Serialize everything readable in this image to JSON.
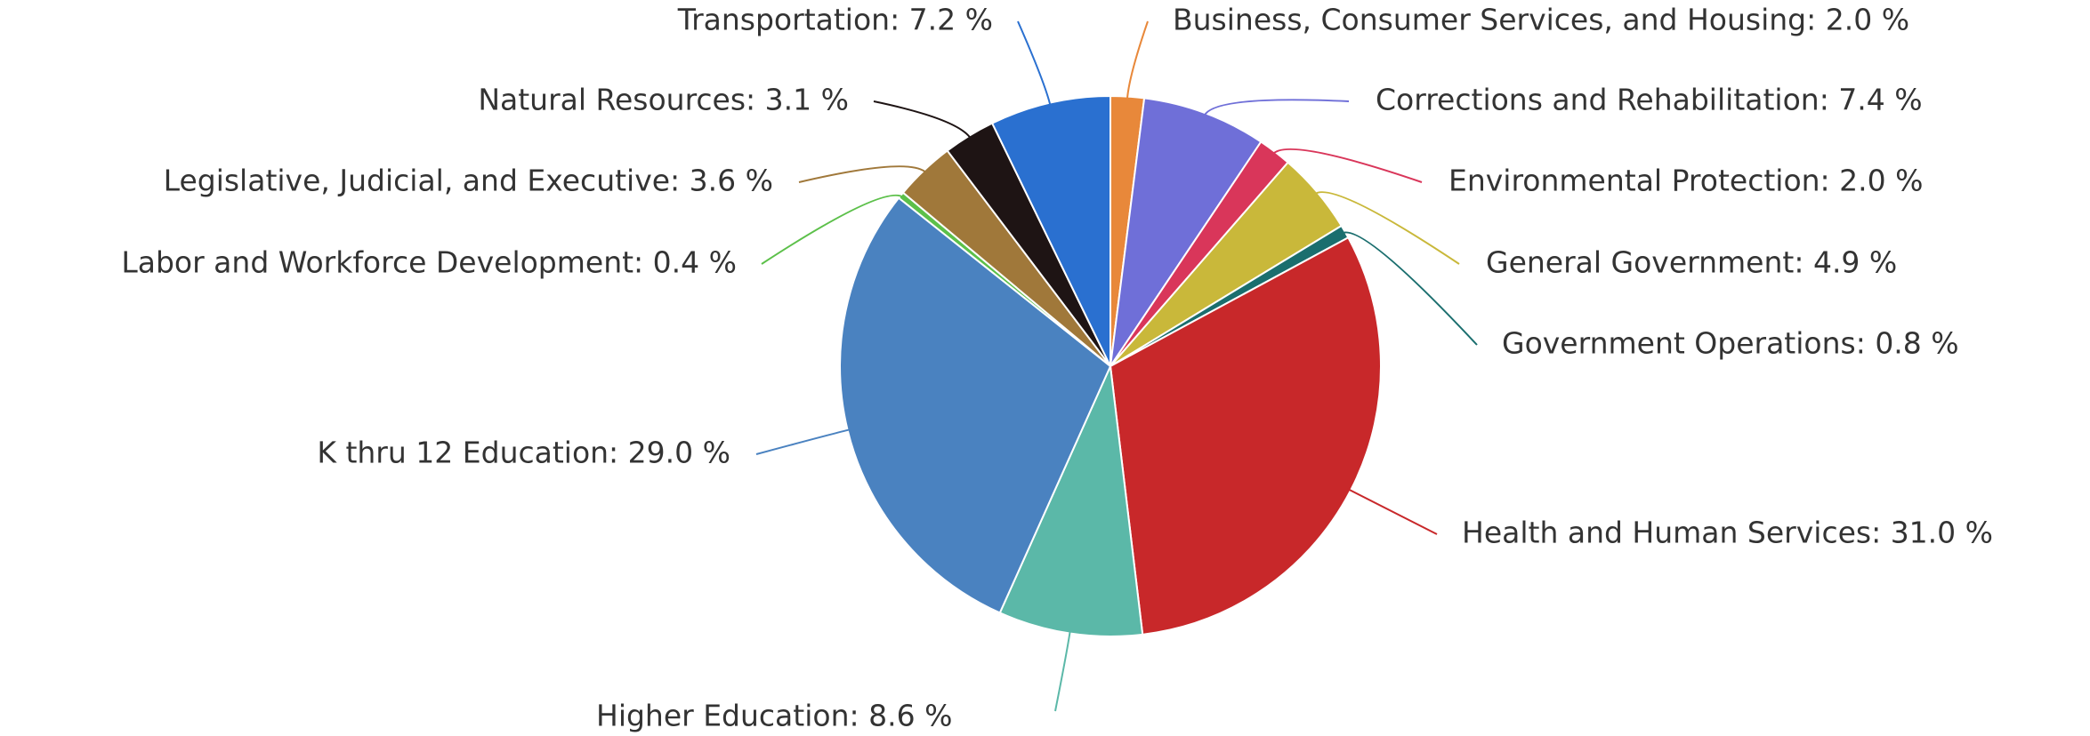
{
  "chart_data": {
    "type": "pie",
    "values": [
      2.0,
      7.4,
      2.0,
      4.9,
      0.8,
      31.0,
      8.6,
      29.0,
      0.4,
      3.6,
      3.1,
      7.2
    ],
    "value_labels": [
      "Business, Consumer Services, and Housing: 2.0 %",
      "Corrections and Rehabilitation: 7.4 %",
      "Environmental Protection: 2.0 %",
      "General Government: 4.9 %",
      "Government Operations: 0.8 %",
      "Health and Human Services: 31.0 %",
      "Higher Education: 8.6 %",
      "K thru 12 Education: 29.0 %",
      "Labor and Workforce Development: 0.4 %",
      "Legislative, Judicial, and Executive: 3.6 %",
      "Natural Resources: 3.1 %",
      "Transportation: 7.2 %"
    ],
    "colors": [
      "#e8883a",
      "#6f6fd8",
      "#d9365a",
      "#c9b83a",
      "#1a6e6e",
      "#c8282a",
      "#5bb8a8",
      "#4a82c0",
      "#5cc04a",
      "#a0783a",
      "#1e1414",
      "#2a70d0"
    ]
  }
}
